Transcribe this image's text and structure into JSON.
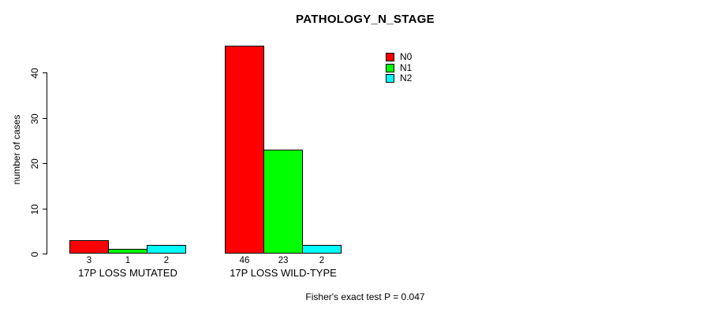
{
  "chart_data": {
    "type": "bar",
    "title": "PATHOLOGY_N_STAGE",
    "ylabel": "number of cases",
    "xlabel": "",
    "footnote": "Fisher's exact test P = 0.047",
    "categories": [
      "17P LOSS MUTATED",
      "17P LOSS WILD-TYPE"
    ],
    "series": [
      {
        "name": "N0",
        "color": "#ff0000",
        "values": [
          3,
          46
        ]
      },
      {
        "name": "N1",
        "color": "#00ff00",
        "values": [
          1,
          23
        ]
      },
      {
        "name": "N2",
        "color": "#00ffff",
        "values": [
          2,
          2
        ]
      }
    ],
    "bar_value_labels": [
      [
        "3",
        "1",
        "2"
      ],
      [
        "46",
        "23",
        "2"
      ]
    ],
    "yticks": [
      0,
      10,
      20,
      30,
      40
    ],
    "ylim": [
      0,
      46
    ],
    "grid": false,
    "legend": {
      "position": "top-right",
      "entries": [
        "N0",
        "N1",
        "N2"
      ]
    },
    "bar_border_color": "#000000",
    "axis_color": "#000000",
    "background_color": "#ffffff"
  }
}
